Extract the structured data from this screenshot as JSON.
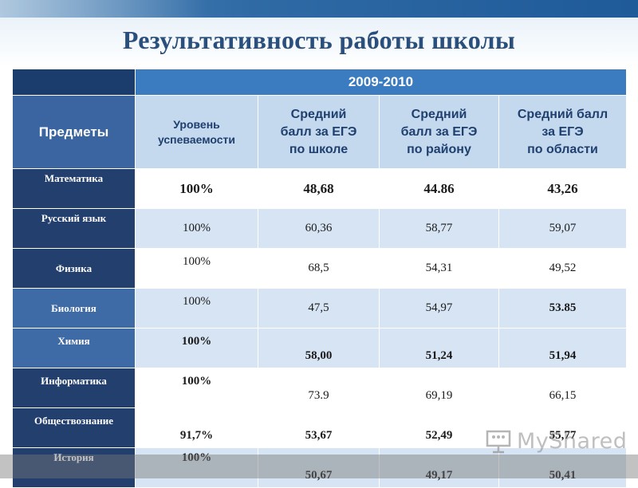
{
  "title": "Результативность  работы школы",
  "year_label": "2009-2010",
  "header": {
    "subjects": "Предметы",
    "col1": [
      "Уровень",
      "успеваемости"
    ],
    "col2": [
      "Средний",
      "балл за ЕГЭ",
      "по школе"
    ],
    "col3": [
      "Средний",
      "балл за ЕГЭ",
      "по району"
    ],
    "col4": [
      "Средний балл",
      "за ЕГЭ",
      "по области"
    ]
  },
  "rows": [
    {
      "subject": "Математика",
      "success": "100%",
      "school": "48,68",
      "district": "44.86",
      "region": "43,26"
    },
    {
      "subject": "Русский язык",
      "success": "100%",
      "school": "60,36",
      "district": "58,77",
      "region": "59,07"
    },
    {
      "subject": "Физика",
      "success": "100%",
      "school": "68,5",
      "district": "54,31",
      "region": "49,52"
    },
    {
      "subject": "Биология",
      "success": "100%",
      "school": "47,5",
      "district": "54,97",
      "region": "53.85"
    },
    {
      "subject": "Химия",
      "success": "100%",
      "school": "58,00",
      "district": "51,24",
      "region": "51,94"
    },
    {
      "subject": "Информатика",
      "success": "100%",
      "school": "73.9",
      "district": "69,19",
      "region": "66,15"
    },
    {
      "subject": "Обществознание",
      "success": "91,7%",
      "school": "53,67",
      "district": "52,49",
      "region": "55,77"
    },
    {
      "subject": "История",
      "success": "100%",
      "school": "50,67",
      "district": "49,17",
      "region": "50,41"
    }
  ],
  "watermark": {
    "text": "MyShared",
    "icon": "presentation-board-icon"
  },
  "colors": {
    "title": "#2b4f7c",
    "year_bg": "#3b7cc0",
    "subject_dark": "#223f6d",
    "subject_light": "#3e6aa6",
    "header_bg": "#c5d9ee",
    "stripe": "#d6e4f3"
  }
}
